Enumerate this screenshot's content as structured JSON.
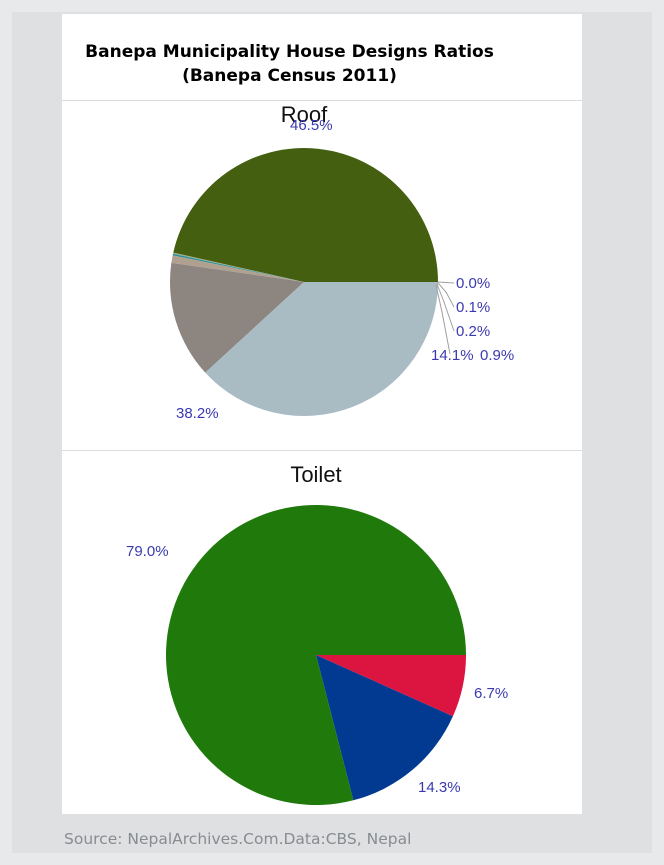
{
  "page": {
    "title_line1": "Banepa Municipality House Designs Ratios",
    "title_line2": "(Banepa Census 2011)",
    "source": "Source: NepalArchives.Com.Data:CBS, Nepal"
  },
  "chart_data": [
    {
      "type": "pie",
      "title": "Roof",
      "slices": [
        {
          "label": "46.5%",
          "value": 46.5,
          "color": "#445f10"
        },
        {
          "label": "0.0%",
          "value": 0.04,
          "color": "#d98a2a"
        },
        {
          "label": "0.1%",
          "value": 0.1,
          "color": "#7fb0a0"
        },
        {
          "label": "0.2%",
          "value": 0.2,
          "color": "#2d8f8f"
        },
        {
          "label": "0.9%",
          "value": 0.9,
          "color": "#b0a090"
        },
        {
          "label": "14.1%",
          "value": 14.1,
          "color": "#8c8580"
        },
        {
          "label": "38.2%",
          "value": 38.2,
          "color": "#a9bbc3"
        }
      ]
    },
    {
      "type": "pie",
      "title": "Toilet",
      "slices": [
        {
          "label": "6.7%",
          "value": 6.7,
          "color": "#dc1440"
        },
        {
          "label": "14.3%",
          "value": 14.3,
          "color": "#023a92"
        },
        {
          "label": "79.0%",
          "value": 79.0,
          "color": "#1f7a0b"
        }
      ]
    }
  ]
}
